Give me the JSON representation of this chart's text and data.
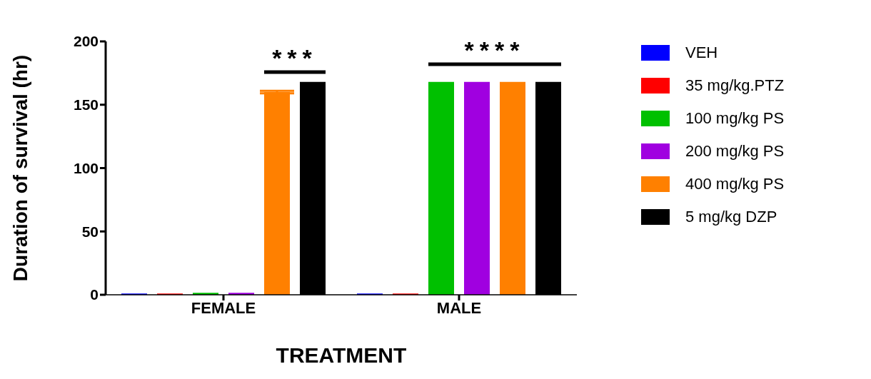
{
  "chart_data": {
    "type": "bar",
    "ylabel": "Duration of survival  (hr)",
    "xlabel": "TREATMENT",
    "categories": [
      "FEMALE",
      "MALE"
    ],
    "ylim": [
      0,
      200
    ],
    "yticks": [
      0,
      50,
      100,
      150,
      200
    ],
    "grid": false,
    "legend": "right",
    "series": [
      {
        "name": "VEH",
        "color": "#0000ff",
        "values": [
          1,
          1
        ]
      },
      {
        "name": "35 mg/kg.PTZ",
        "color": "#ff0000",
        "values": [
          1,
          1
        ]
      },
      {
        "name": "100 mg/kg PS",
        "color": "#00c000",
        "values": [
          1.5,
          168
        ]
      },
      {
        "name": "200 mg/kg PS",
        "color": "#a000e0",
        "values": [
          1.5,
          168
        ]
      },
      {
        "name": "400 mg/kg PS",
        "color": "#ff8000",
        "values": [
          160,
          168
        ],
        "errors": [
          1,
          null
        ]
      },
      {
        "name": "5 mg/kg DZP",
        "color": "#000000",
        "values": [
          168,
          168
        ]
      }
    ],
    "annotations": [
      "***",
      "****"
    ]
  }
}
